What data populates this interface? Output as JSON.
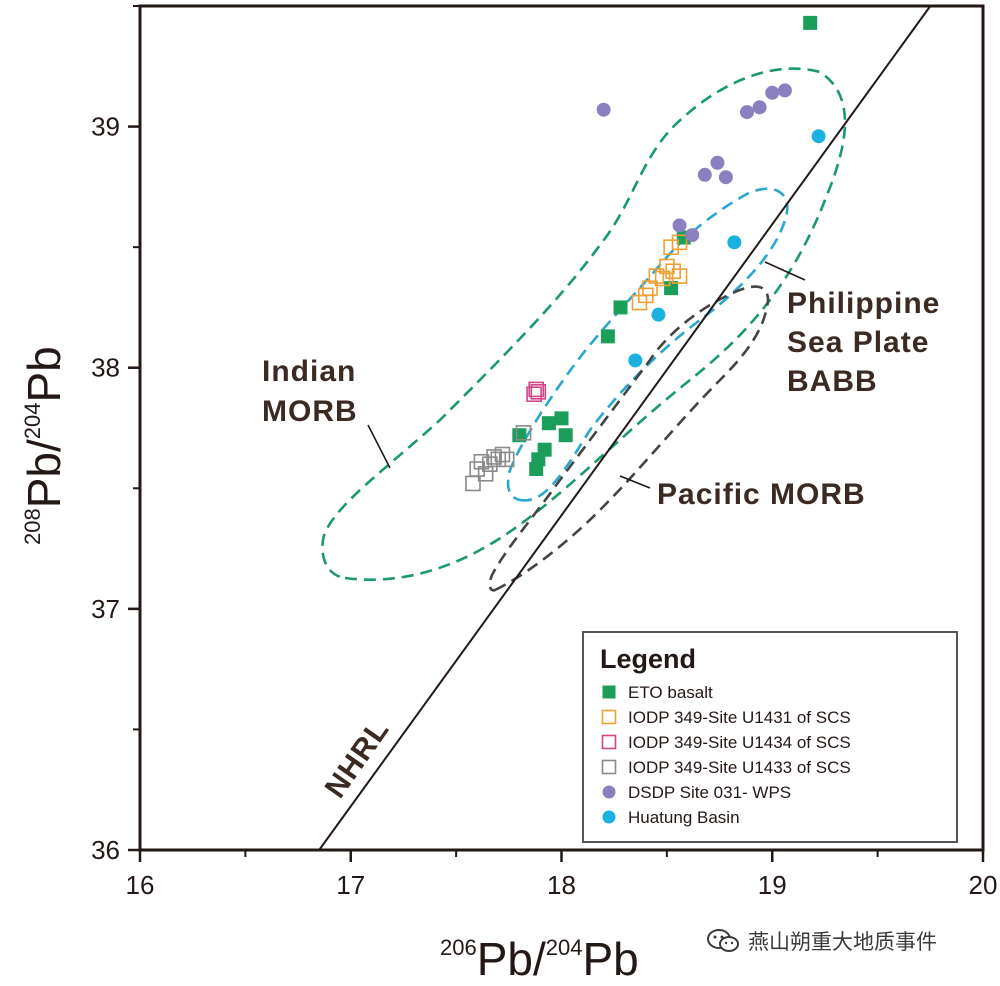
{
  "chart_data": {
    "type": "scatter",
    "x_axis": {
      "label_sup": "206",
      "label_main": "Pb/",
      "label_sup2": "204",
      "label_end": "Pb",
      "range": [
        16,
        20
      ],
      "ticks": [
        "16",
        "17",
        "18",
        "19",
        "20"
      ]
    },
    "y_axis": {
      "label_sup": "208",
      "label_main": "Pb/",
      "label_sup2": "204",
      "label_end": "Pb",
      "range": [
        36,
        39.5
      ],
      "ticks": [
        "36",
        "37",
        "38",
        "39"
      ]
    },
    "reference_line": {
      "name": "NHRL",
      "points": [
        [
          16.85,
          36.0
        ],
        [
          19.75,
          39.5
        ]
      ]
    },
    "fields": [
      {
        "name": "Indian MORB",
        "label_lines": [
          "Indian",
          "MORB"
        ],
        "color": "#1a9a6a"
      },
      {
        "name": "Philippine Sea Plate BABB",
        "label_lines": [
          "Philippine",
          "Sea Plate",
          "BABB"
        ],
        "color": "#2aa6d0"
      },
      {
        "name": "Pacific MORB",
        "label_lines": [
          "Pacific MORB"
        ],
        "color": "#444444"
      }
    ],
    "series": [
      {
        "name": "ETO basalt",
        "marker": "filled-square",
        "color": "#1a9e5a",
        "points": [
          [
            17.8,
            37.72
          ],
          [
            17.88,
            37.58
          ],
          [
            17.89,
            37.62
          ],
          [
            17.92,
            37.66
          ],
          [
            17.94,
            37.77
          ],
          [
            18.0,
            37.79
          ],
          [
            18.02,
            37.72
          ],
          [
            18.22,
            38.13
          ],
          [
            18.28,
            38.25
          ],
          [
            18.52,
            38.33
          ],
          [
            18.58,
            38.54
          ],
          [
            19.18,
            39.43
          ]
        ]
      },
      {
        "name": "IODP 349-Site U1431 of SCS",
        "marker": "open-square",
        "color": "#f0a030",
        "points": [
          [
            18.37,
            38.27
          ],
          [
            18.4,
            38.3
          ],
          [
            18.42,
            38.33
          ],
          [
            18.45,
            38.38
          ],
          [
            18.48,
            38.37
          ],
          [
            18.5,
            38.42
          ],
          [
            18.53,
            38.4
          ],
          [
            18.56,
            38.38
          ],
          [
            18.52,
            38.5
          ],
          [
            18.56,
            38.52
          ]
        ]
      },
      {
        "name": "IODP 349-Site U1434 of SCS",
        "marker": "open-square",
        "color": "#d04488",
        "points": [
          [
            17.87,
            37.89
          ],
          [
            17.88,
            37.91
          ],
          [
            17.89,
            37.9
          ]
        ]
      },
      {
        "name": "IODP 349-Site U1433 of SCS",
        "marker": "open-square",
        "color": "#8a8a8a",
        "points": [
          [
            17.58,
            37.52
          ],
          [
            17.6,
            37.58
          ],
          [
            17.62,
            37.61
          ],
          [
            17.64,
            37.56
          ],
          [
            17.66,
            37.6
          ],
          [
            17.68,
            37.63
          ],
          [
            17.7,
            37.62
          ],
          [
            17.72,
            37.64
          ],
          [
            17.74,
            37.62
          ],
          [
            17.82,
            37.73
          ]
        ]
      },
      {
        "name": "DSDP Site 031- WPS",
        "marker": "filled-circle",
        "color": "#8a80c0",
        "points": [
          [
            18.2,
            39.07
          ],
          [
            18.56,
            38.59
          ],
          [
            18.62,
            38.55
          ],
          [
            18.68,
            38.8
          ],
          [
            18.74,
            38.85
          ],
          [
            18.78,
            38.79
          ],
          [
            18.88,
            39.06
          ],
          [
            18.94,
            39.08
          ],
          [
            19.0,
            39.14
          ],
          [
            19.06,
            39.15
          ]
        ]
      },
      {
        "name": "Huatung Basin",
        "marker": "filled-circle",
        "color": "#1ab0e0",
        "points": [
          [
            18.35,
            38.03
          ],
          [
            18.46,
            38.22
          ],
          [
            18.82,
            38.52
          ],
          [
            19.22,
            38.96
          ]
        ]
      }
    ]
  },
  "legend": {
    "title": "Legend",
    "items": [
      "ETO basalt",
      "IODP 349-Site U1431 of SCS",
      "IODP 349-Site U1434 of SCS",
      "IODP 349-Site U1433 of SCS",
      "DSDP Site 031- WPS",
      "Huatung Basin"
    ]
  },
  "watermark": {
    "text": "燕山朔重大地质事件",
    "icon": "wechat-icon"
  }
}
